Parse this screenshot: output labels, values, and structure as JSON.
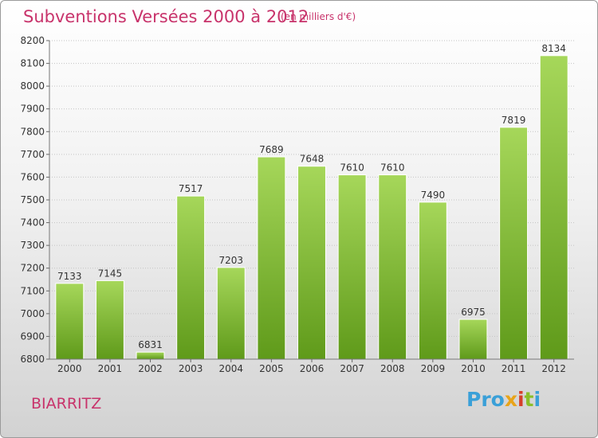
{
  "title": "Subventions Versées 2000 à 2012",
  "unit_note": "(en milliers d'€)",
  "place": "BIARRITZ",
  "brand": {
    "text": "Proxiti",
    "letters": [
      "Pro",
      "x",
      "i",
      "t",
      "i"
    ]
  },
  "colors": {
    "accent": "#c8336b",
    "bar_light": "#a6d75a",
    "bar_dark": "#5f9a1a"
  },
  "chart_data": {
    "type": "bar",
    "categories": [
      "2000",
      "2001",
      "2002",
      "2003",
      "2004",
      "2005",
      "2006",
      "2007",
      "2008",
      "2009",
      "2010",
      "2011",
      "2012"
    ],
    "values": [
      7133,
      7145,
      6831,
      7517,
      7203,
      7689,
      7648,
      7610,
      7610,
      7490,
      6975,
      7819,
      8134
    ],
    "ylim": [
      6800,
      8200
    ],
    "yticks": [
      6800,
      6900,
      7000,
      7100,
      7200,
      7300,
      7400,
      7500,
      7600,
      7700,
      7800,
      7900,
      8000,
      8100,
      8200
    ],
    "grid": true,
    "data_labels": true
  }
}
